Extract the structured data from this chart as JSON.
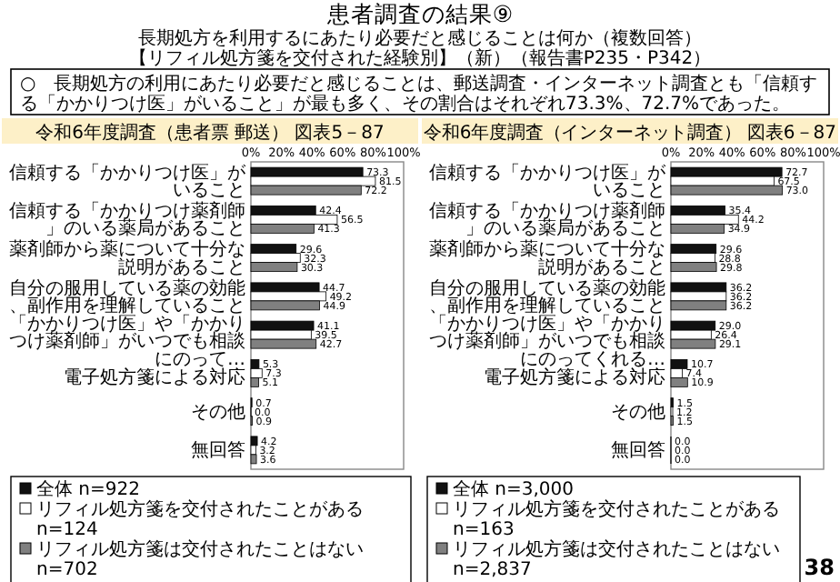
{
  "chart_data": [
    {
      "type": "bar",
      "orientation": "horizontal",
      "title": "令和6年度調査（患者票 郵送）",
      "subtitle": "図表5－87",
      "annotations": [
        "患者調査の結果⑨",
        "長期処方を利用するにあたり必要だと感じることは何か（複数回答）",
        "【リフィル処方箋を交付された経験別】（新）（報告書P235・P342）",
        "○　長期処方の利用にあたり必要だと感じることは、郵送調査・インターネット調査とも「信頼する「かかりつけ医」がいること」が最も多く、その割合はそれぞれ73.3%、72.7%であった。"
      ],
      "categories": [
        "信頼する「かかりつけ医」がいること",
        "信頼する「かかりつけ薬剤師」のいる薬局があること",
        "薬剤師から薬について十分な説明があること",
        "自分の服用している薬の効能、副作用を理解していること",
        "「かかりつけ医」や「かかりつけ薬剤師」がいつでも相談にのって…",
        "電子処方箋による対応",
        "その他",
        "無回答"
      ],
      "series": [
        {
          "name": "全体 n=922",
          "color": "#111111",
          "values": [
            73.3,
            42.4,
            29.6,
            44.7,
            41.1,
            5.3,
            0.7,
            4.2
          ],
          "value_labels": [
            "73.3",
            "42.4",
            "29.6",
            "44.7",
            "41.1",
            "5.3",
            "0.7",
            "4.2"
          ]
        },
        {
          "name": "リフィル処方箋を交付されたことがある n=124",
          "color": "#ffffff",
          "values": [
            81.5,
            56.5,
            32.3,
            49.2,
            39.5,
            7.3,
            0,
            3.2
          ],
          "value_labels": [
            "81.5",
            "56.5",
            "32.3",
            "49.2",
            "39.5",
            "7.3",
            "0.0",
            "3.2"
          ]
        },
        {
          "name": "リフィル処方箋は交付されたことはない n=702",
          "color": "#808080",
          "values": [
            72.2,
            41.3,
            30.3,
            44.9,
            42.7,
            5.1,
            0.9,
            3.6
          ],
          "value_labels": [
            "72.2",
            "41.3",
            "30.3",
            "44.9",
            "42.7",
            "5.1",
            "0.9",
            "3.6"
          ]
        }
      ],
      "xlim": [
        0,
        100
      ],
      "xticks": [
        {
          "value": 0,
          "label": "0%"
        },
        {
          "value": 20,
          "label": "20%"
        },
        {
          "value": 40,
          "label": "40%"
        },
        {
          "value": 60,
          "label": "60%"
        },
        {
          "value": 80,
          "label": "80%"
        },
        {
          "value": 100,
          "label": "100%"
        }
      ],
      "legend": "bottom"
    },
    {
      "type": "bar",
      "orientation": "horizontal",
      "title": "令和6年度調査（インターネット調査）",
      "subtitle": "図表6－87",
      "annotations": [
        "38"
      ],
      "categories": [
        "信頼する「かかりつけ医」がいること",
        "信頼する「かかりつけ薬剤師」のいる薬局があること",
        "薬剤師から薬について十分な説明があること",
        "自分の服用している薬の効能、副作用を理解していること",
        "「かかりつけ医」や「かかりつけ薬剤師」がいつでも相談にのってくれる…",
        "電子処方箋による対応",
        "その他",
        "無回答"
      ],
      "series": [
        {
          "name": "全体 n=3,000",
          "color": "#111111",
          "values": [
            72.7,
            35.4,
            29.6,
            36.2,
            29,
            10.7,
            1.5,
            0
          ],
          "value_labels": [
            "72.7",
            "35.4",
            "29.6",
            "36.2",
            "29.0",
            "10.7",
            "1.5",
            "0.0"
          ]
        },
        {
          "name": "リフィル処方箋を交付されたことがある n=163",
          "color": "#ffffff",
          "values": [
            67.5,
            44.2,
            28.8,
            36.2,
            26.4,
            7.4,
            1.2,
            0
          ],
          "value_labels": [
            "67.5",
            "44.2",
            "28.8",
            "36.2",
            "26.4",
            "7.4",
            "1.2",
            "0.0"
          ]
        },
        {
          "name": "リフィル処方箋は交付されたことはない n=2,837",
          "color": "#808080",
          "values": [
            73,
            34.9,
            29.8,
            36.2,
            29.1,
            10.9,
            1.5,
            0
          ],
          "value_labels": [
            "73.0",
            "34.9",
            "29.8",
            "36.2",
            "29.1",
            "10.9",
            "1.5",
            "0.0"
          ]
        }
      ],
      "xlim": [
        0,
        100
      ],
      "xticks": [
        {
          "value": 0,
          "label": "0%"
        },
        {
          "value": 20,
          "label": "20%"
        },
        {
          "value": 40,
          "label": "40%"
        },
        {
          "value": 60,
          "label": "60%"
        },
        {
          "value": 80,
          "label": "80%"
        },
        {
          "value": 100,
          "label": "100%"
        }
      ],
      "legend": "bottom"
    }
  ]
}
